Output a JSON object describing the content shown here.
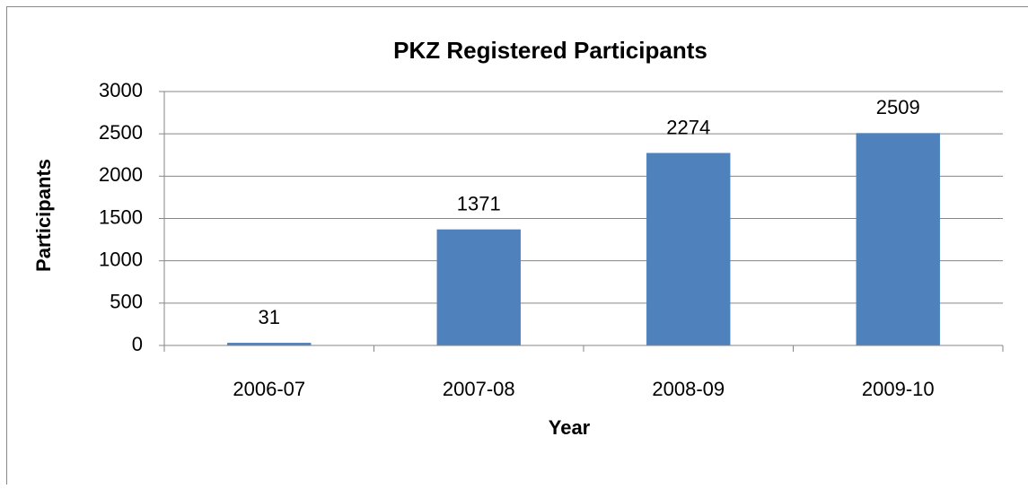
{
  "chart_data": {
    "type": "bar",
    "title": "PKZ Registered Participants",
    "x_label": "Year",
    "y_label": "Participants",
    "categories": [
      "2006-07",
      "2007-08",
      "2008-09",
      "2009-10"
    ],
    "values": [
      31,
      1371,
      2274,
      2509
    ],
    "color": "#4f81bd",
    "ylim": [
      0,
      3000
    ],
    "yticks": [
      0,
      500,
      1000,
      1500,
      2000,
      2500,
      3000
    ],
    "grid": true
  }
}
